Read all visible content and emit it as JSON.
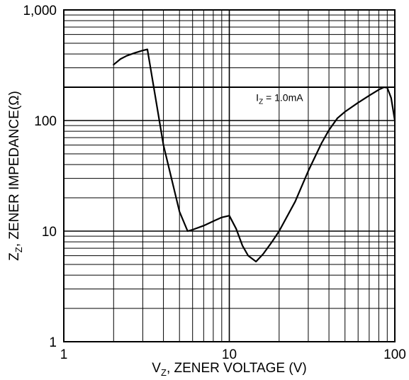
{
  "chart_data": {
    "type": "line",
    "xscale": "log",
    "yscale": "log",
    "xlim": [
      1,
      100
    ],
    "ylim": [
      1,
      1000
    ],
    "x_ticks": [
      {
        "value": 1,
        "label": "1"
      },
      {
        "value": 10,
        "label": "10"
      },
      {
        "value": 100,
        "label": "100"
      }
    ],
    "y_ticks": [
      {
        "value": 1,
        "label": "1"
      },
      {
        "value": 10,
        "label": "10"
      },
      {
        "value": 100,
        "label": "100"
      },
      {
        "value": 1000,
        "label": "1,000"
      }
    ],
    "xlabel": {
      "main": "V",
      "sub": "Z",
      "rest": ", ZENER VOLTAGE (V)"
    },
    "ylabel": {
      "main": "Z",
      "sub": "Z",
      "rest": ", ZENER IMPEDANCE(Ω)"
    },
    "grid": true,
    "reference_line": {
      "y": 200
    },
    "annotation": {
      "main": "I",
      "sub": "Z",
      "rest": " = 1.0mA",
      "x": 14.5,
      "y": 150
    },
    "line_color": "#000000",
    "series": [
      {
        "x": [
          2.0,
          2.2,
          2.4,
          2.7,
          3.0,
          3.2,
          4.0,
          5.0,
          5.6,
          6.0,
          7.0,
          8.0,
          9.0,
          10.0,
          11.0,
          12.0,
          13.0,
          14.5,
          16.0,
          18.0,
          20.0,
          25.0,
          30.0,
          36.0,
          40.0,
          45.0,
          50.0,
          60.0,
          70.0,
          80.0,
          86.0,
          90.0,
          95.0,
          100.0
        ],
        "y": [
          320,
          360,
          385,
          410,
          430,
          440,
          60,
          15,
          10,
          10.3,
          11.2,
          12.3,
          13.3,
          13.8,
          10.5,
          7.4,
          6.0,
          5.3,
          6.2,
          7.9,
          10,
          18.5,
          35,
          62,
          82,
          105,
          120,
          145,
          168,
          190,
          200,
          198,
          160,
          100
        ]
      }
    ]
  }
}
